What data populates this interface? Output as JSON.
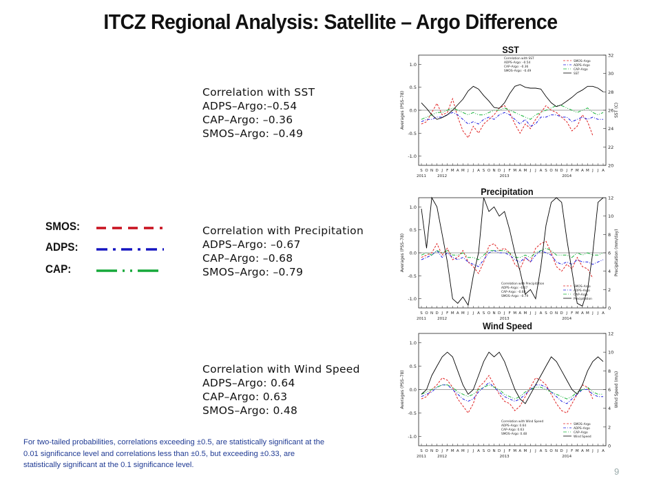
{
  "title": "ITCZ Regional Analysis:  Satellite – Argo Difference",
  "colors": {
    "smos": "#e02020",
    "adps": "#1a1adf",
    "cap": "#13b236",
    "variable": "#000000",
    "text_footnote": "#1f3a93"
  },
  "legend": {
    "items": [
      {
        "label": "SMOS:",
        "color": "#c8101e",
        "style": "dashed"
      },
      {
        "label": "ADPS:",
        "color": "#1515c0",
        "style": "dash-dot"
      },
      {
        "label": "CAP:",
        "color": "#16a83a",
        "style": "dash-dot-dot"
      }
    ]
  },
  "correlation_boxes": [
    {
      "lines": [
        "Correlation with SST",
        "ADPS–Argo:–0.54",
        "CAP–Argo: –0.36",
        "SMOS–Argo: –0.49"
      ]
    },
    {
      "lines": [
        "Correlation with Precipitation",
        "ADPS–Argo: –0.67",
        "CAP–Argo: –0.68",
        "SMOS–Argo: –0.79"
      ]
    },
    {
      "lines": [
        "Correlation with Wind Speed",
        "ADPS–Argo: 0.64",
        "CAP–Argo: 0.63",
        "SMOS–Argo: 0.48"
      ]
    }
  ],
  "footnote": "For two-tailed probabilities, correlations exceeding ±0.5, are statistically significant at the 0.01 significance level and correlations less than ±0.5, but exceeding  ±0.33, are statistically significant at the 0.1 significance level.",
  "page_number": "9",
  "chart_data": [
    {
      "type": "line",
      "title": "SST",
      "ylabel": "Averages (PSS–78)",
      "y2label": "SST (C)",
      "ylim": [
        -1.2,
        1.2
      ],
      "yticks": [
        -1.0,
        -0.5,
        0.0,
        0.5,
        1.0
      ],
      "y2lim": [
        20,
        32
      ],
      "y2ticks": [
        20,
        22,
        24,
        26,
        28,
        30,
        32
      ],
      "months": [
        "S",
        "O",
        "N",
        "D",
        "J",
        "F",
        "M",
        "A",
        "M",
        "J",
        "J",
        "A",
        "S",
        "O",
        "N",
        "D",
        "J",
        "F",
        "M",
        "A",
        "M",
        "J",
        "J",
        "A",
        "S",
        "O",
        "N",
        "D",
        "J",
        "F",
        "M",
        "A",
        "M",
        "J",
        "J",
        "A"
      ],
      "years": [
        {
          "label": "2011",
          "index": 0
        },
        {
          "label": "2012",
          "index": 4
        },
        {
          "label": "2013",
          "index": 16
        },
        {
          "label": "2014",
          "index": 28
        }
      ],
      "inner_legend": [
        "SMOS–Argo",
        "ADPS–Argo",
        "CAP–Argo",
        "SST"
      ],
      "inner_text": [
        "Correlation with SST",
        "ADPS–Argo: –0.54",
        "CAP–Argo: –0.36",
        "SMOS–Argo: –0.49"
      ],
      "series": [
        {
          "name": "SMOS–Argo",
          "axis": "left",
          "values": [
            -0.3,
            -0.25,
            -0.05,
            0.15,
            -0.1,
            -0.05,
            0.25,
            -0.15,
            -0.45,
            -0.6,
            -0.35,
            -0.5,
            -0.3,
            -0.2,
            -0.1,
            0.05,
            0.1,
            -0.05,
            -0.3,
            -0.5,
            -0.3,
            -0.4,
            -0.2,
            -0.05,
            0.1,
            0.0,
            -0.05,
            -0.15,
            -0.25,
            -0.45,
            -0.35,
            -0.1,
            -0.25,
            -0.55,
            null,
            null
          ]
        },
        {
          "name": "ADPS–Argo",
          "axis": "left",
          "values": [
            -0.25,
            -0.2,
            -0.2,
            -0.15,
            -0.15,
            -0.1,
            -0.05,
            -0.1,
            -0.2,
            -0.3,
            -0.25,
            -0.3,
            -0.2,
            -0.15,
            -0.2,
            -0.1,
            -0.05,
            -0.1,
            -0.2,
            -0.3,
            -0.2,
            -0.35,
            -0.3,
            -0.15,
            -0.15,
            -0.1,
            -0.1,
            -0.15,
            -0.15,
            -0.25,
            -0.2,
            -0.15,
            -0.2,
            -0.15,
            -0.2,
            -0.2
          ]
        },
        {
          "name": "CAP–Argo",
          "axis": "left",
          "values": [
            -0.2,
            -0.15,
            -0.1,
            -0.05,
            -0.05,
            0.0,
            0.05,
            0.0,
            -0.05,
            -0.1,
            -0.05,
            -0.1,
            -0.1,
            -0.05,
            0.0,
            0.0,
            0.05,
            0.0,
            -0.05,
            -0.1,
            -0.15,
            -0.2,
            -0.1,
            -0.05,
            0.0,
            0.05,
            0.1,
            0.1,
            0.05,
            0.0,
            -0.05,
            0.0,
            0.05,
            -0.05,
            -0.1,
            -0.05
          ]
        },
        {
          "name": "SST",
          "axis": "right",
          "values": [
            26.8,
            26.2,
            25.5,
            25.0,
            25.2,
            25.5,
            26.0,
            26.6,
            27.2,
            28.1,
            28.6,
            28.3,
            27.6,
            27.0,
            26.3,
            26.2,
            26.8,
            27.8,
            28.6,
            28.8,
            28.5,
            28.4,
            28.4,
            28.3,
            27.5,
            26.8,
            26.4,
            26.6,
            27.0,
            27.4,
            27.9,
            28.2,
            28.6,
            28.6,
            28.4,
            28.0
          ]
        }
      ]
    },
    {
      "type": "line",
      "title": "Precipitation",
      "ylabel": "Averages (PSS–78)",
      "y2label": "Precipitation (mm/day)",
      "ylim": [
        -1.2,
        1.2
      ],
      "yticks": [
        -1.0,
        -0.5,
        0.0,
        0.5,
        1.0
      ],
      "y2lim": [
        0,
        12
      ],
      "y2ticks": [
        0,
        2,
        4,
        6,
        8,
        10,
        12
      ],
      "months": [
        "S",
        "O",
        "N",
        "D",
        "J",
        "F",
        "M",
        "A",
        "M",
        "J",
        "J",
        "A",
        "S",
        "O",
        "N",
        "D",
        "J",
        "F",
        "M",
        "A",
        "M",
        "J",
        "J",
        "A",
        "S",
        "O",
        "N",
        "D",
        "J",
        "F",
        "M",
        "A",
        "M",
        "J",
        "J",
        "A"
      ],
      "years": [
        {
          "label": "2011",
          "index": 0
        },
        {
          "label": "2012",
          "index": 4
        },
        {
          "label": "2013",
          "index": 16
        },
        {
          "label": "2014",
          "index": 28
        }
      ],
      "inner_legend": [
        "SMOS–Argo",
        "ADPS–Argo",
        "CAP–Argo",
        "Precipitation"
      ],
      "inner_text": [
        "Correlation with Precipitation",
        "ADPS–Argo: –0.67",
        "CAP–Argo: –0.68",
        "SMOS–Argo: –0.79"
      ],
      "series": [
        {
          "name": "SMOS–Argo",
          "axis": "left",
          "values": [
            -0.1,
            -0.05,
            0.0,
            0.2,
            -0.05,
            0.1,
            -0.15,
            -0.1,
            0.05,
            -0.2,
            -0.3,
            -0.45,
            -0.2,
            0.15,
            0.2,
            0.05,
            0.1,
            0.0,
            -0.25,
            -0.35,
            -0.1,
            -0.2,
            0.1,
            0.2,
            0.25,
            0.0,
            -0.3,
            -0.4,
            -0.25,
            -0.35,
            -0.1,
            -0.3,
            -0.35,
            -0.55,
            null,
            null
          ]
        },
        {
          "name": "ADPS–Argo",
          "axis": "left",
          "values": [
            -0.15,
            -0.1,
            -0.05,
            0.05,
            -0.1,
            0.0,
            -0.1,
            -0.15,
            -0.1,
            -0.2,
            -0.25,
            -0.3,
            -0.15,
            0.0,
            0.05,
            0.0,
            0.0,
            -0.05,
            -0.15,
            -0.2,
            -0.1,
            -0.2,
            -0.05,
            0.05,
            0.0,
            -0.05,
            -0.2,
            -0.25,
            -0.2,
            -0.25,
            -0.15,
            -0.2,
            -0.2,
            -0.25,
            -0.2,
            -0.15
          ]
        },
        {
          "name": "CAP–Argo",
          "axis": "left",
          "values": [
            -0.05,
            0.0,
            -0.05,
            0.05,
            0.0,
            0.05,
            -0.05,
            -0.05,
            0.0,
            -0.1,
            -0.1,
            -0.15,
            -0.05,
            0.05,
            0.05,
            0.05,
            0.05,
            0.0,
            -0.1,
            -0.1,
            -0.05,
            -0.1,
            0.0,
            0.05,
            0.1,
            0.05,
            -0.05,
            -0.05,
            -0.05,
            -0.1,
            0.0,
            -0.05,
            0.0,
            -0.05,
            -0.05,
            0.0
          ]
        },
        {
          "name": "Precipitation",
          "axis": "right",
          "values": [
            10.8,
            6.5,
            12.0,
            11.0,
            8.0,
            5.0,
            1.0,
            0.5,
            1.2,
            0.3,
            3.5,
            6.0,
            12.0,
            10.5,
            11.0,
            10.0,
            10.5,
            8.5,
            6.0,
            4.0,
            1.5,
            2.0,
            1.0,
            4.5,
            9.0,
            11.5,
            12.0,
            11.5,
            7.5,
            4.0,
            0.5,
            0.2,
            2.0,
            6.0,
            11.5,
            12.0
          ]
        }
      ]
    },
    {
      "type": "line",
      "title": "Wind Speed",
      "ylabel": "Averages (PSS–78)",
      "y2label": "Wind Speed (m/s)",
      "ylim": [
        -1.2,
        1.2
      ],
      "yticks": [
        -1.0,
        -0.5,
        0.0,
        0.5,
        1.0
      ],
      "y2lim": [
        0,
        12
      ],
      "y2ticks": [
        0,
        2,
        4,
        6,
        8,
        10,
        12
      ],
      "months": [
        "S",
        "O",
        "N",
        "D",
        "J",
        "F",
        "M",
        "A",
        "M",
        "J",
        "J",
        "A",
        "S",
        "O",
        "N",
        "D",
        "J",
        "F",
        "M",
        "A",
        "M",
        "J",
        "J",
        "A",
        "S",
        "O",
        "N",
        "D",
        "J",
        "F",
        "M",
        "A",
        "M",
        "J",
        "J",
        "A"
      ],
      "years": [
        {
          "label": "2011",
          "index": 0
        },
        {
          "label": "2012",
          "index": 4
        },
        {
          "label": "2013",
          "index": 16
        },
        {
          "label": "2014",
          "index": 28
        }
      ],
      "inner_legend": [
        "SMOS–Argo",
        "ADPS–Argo",
        "CAP–Argo",
        "Wind Speed"
      ],
      "inner_text": [
        "Correlation with Wind Speed",
        "ADPS–Argo: 0.64",
        "CAP–Argo: 0.63",
        "SMOS–Argo: 0.48"
      ],
      "series": [
        {
          "name": "SMOS–Argo",
          "axis": "left",
          "values": [
            -0.2,
            -0.15,
            0.0,
            0.1,
            0.25,
            0.2,
            0.05,
            -0.2,
            -0.35,
            -0.5,
            -0.3,
            0.05,
            0.15,
            0.3,
            0.1,
            -0.1,
            -0.25,
            -0.3,
            -0.45,
            -0.35,
            -0.15,
            0.05,
            0.25,
            0.2,
            0.1,
            -0.1,
            -0.3,
            -0.45,
            -0.5,
            -0.3,
            -0.1,
            0.1,
            0.05,
            -0.2,
            null,
            null
          ]
        },
        {
          "name": "ADPS–Argo",
          "axis": "left",
          "values": [
            -0.15,
            -0.1,
            -0.05,
            0.05,
            0.1,
            0.1,
            0.0,
            -0.1,
            -0.2,
            -0.25,
            -0.2,
            -0.05,
            0.05,
            0.15,
            0.05,
            -0.05,
            -0.15,
            -0.2,
            -0.25,
            -0.2,
            -0.1,
            0.0,
            0.1,
            0.1,
            0.05,
            -0.05,
            -0.15,
            -0.25,
            -0.3,
            -0.2,
            -0.1,
            0.0,
            0.0,
            -0.1,
            -0.15,
            -0.15
          ]
        },
        {
          "name": "CAP–Argo",
          "axis": "left",
          "values": [
            -0.1,
            -0.05,
            0.0,
            0.05,
            0.1,
            0.1,
            0.05,
            -0.05,
            -0.1,
            -0.15,
            -0.1,
            0.0,
            0.05,
            0.1,
            0.05,
            0.0,
            -0.1,
            -0.15,
            -0.2,
            -0.15,
            -0.05,
            0.0,
            0.05,
            0.05,
            0.0,
            -0.05,
            -0.1,
            -0.15,
            -0.2,
            -0.15,
            -0.05,
            0.0,
            0.05,
            -0.05,
            -0.1,
            -0.1
          ]
        },
        {
          "name": "Wind Speed",
          "axis": "right",
          "values": [
            5.5,
            6.0,
            7.5,
            8.5,
            9.5,
            10.0,
            9.5,
            8.0,
            6.5,
            5.5,
            6.0,
            7.5,
            9.0,
            10.0,
            9.5,
            10.0,
            9.0,
            7.5,
            6.0,
            5.0,
            4.5,
            5.5,
            6.5,
            7.5,
            8.5,
            9.5,
            9.0,
            8.0,
            7.0,
            6.0,
            5.5,
            6.5,
            8.0,
            9.0,
            9.5,
            9.0
          ]
        }
      ]
    }
  ]
}
